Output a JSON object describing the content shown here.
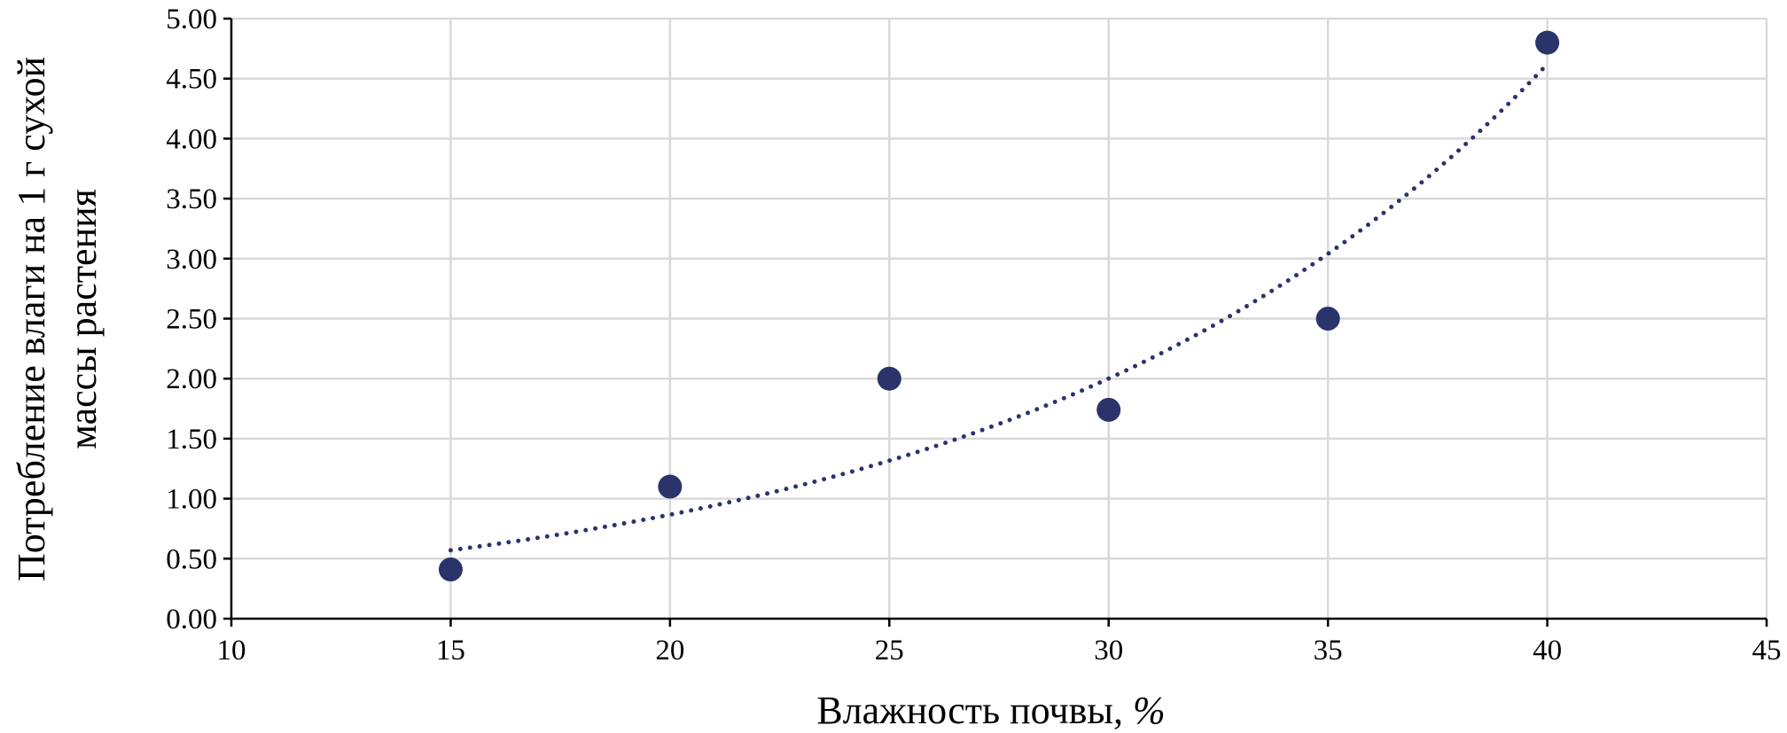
{
  "colors": {
    "marker": "#2b336b",
    "trendline": "#2b336b",
    "grid": "#d9d9d9",
    "axis": "#000000"
  },
  "chart_data": {
    "type": "scatter",
    "xlabel_text": "Влажность почвы, ",
    "xlabel_unit": "%",
    "ylabel_lines": [
      "Потребление влаги на 1 г сухой",
      "массы растения"
    ],
    "xlim": [
      10,
      45
    ],
    "ylim": [
      0,
      5
    ],
    "x_ticks": [
      "10",
      "15",
      "20",
      "25",
      "30",
      "35",
      "40",
      "45"
    ],
    "y_ticks": [
      "0.00",
      "0.50",
      "1.00",
      "1.50",
      "2.00",
      "2.50",
      "3.00",
      "3.50",
      "4.00",
      "4.50",
      "5.00"
    ],
    "grid": true,
    "legend": "none",
    "series": [
      {
        "x": [
          15,
          20,
          25,
          30,
          35,
          40
        ],
        "y": [
          0.41,
          1.1,
          2.0,
          1.74,
          2.5,
          4.8
        ]
      }
    ],
    "trendline": {
      "type": "exponential",
      "style": "dotted",
      "x_range": [
        15,
        40
      ],
      "y_start": 0.57,
      "y_end": 4.62
    }
  }
}
